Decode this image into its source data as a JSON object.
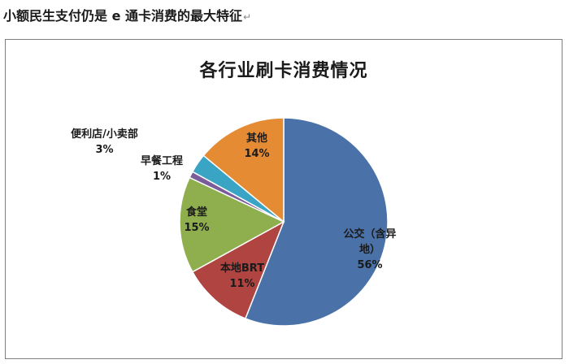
{
  "page": {
    "heading": "小额民生支付仍是 e 通卡消费的最大特征",
    "paragraph_mark": "↵"
  },
  "chart_data": {
    "type": "pie",
    "title": "各行业刷卡消费情况",
    "slices": [
      {
        "label": "公交（含异地）",
        "value": 56,
        "value_label": "56%",
        "color": "#4a72a8"
      },
      {
        "label": "本地BRT",
        "value": 11,
        "value_label": "11%",
        "color": "#b04440"
      },
      {
        "label": "食堂",
        "value": 15,
        "value_label": "15%",
        "color": "#8faf4e"
      },
      {
        "label": "早餐工程",
        "value": 1,
        "value_label": "1%",
        "color": "#7a5c9a"
      },
      {
        "label": "便利店/小卖部",
        "value": 3,
        "value_label": "3%",
        "color": "#3aa4c4"
      },
      {
        "label": "其他",
        "value": 14,
        "value_label": "14%",
        "color": "#e58b33"
      }
    ]
  }
}
